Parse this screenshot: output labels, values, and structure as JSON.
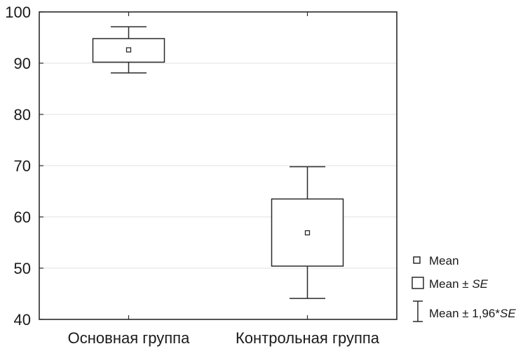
{
  "chart_data": {
    "type": "box",
    "title": "",
    "xlabel": "",
    "ylabel": "",
    "ylim": [
      40,
      100
    ],
    "yticks": [
      40,
      50,
      60,
      70,
      80,
      90,
      100
    ],
    "grid": "horizontal",
    "categories": [
      "Основная группа",
      "Контрольная группа"
    ],
    "boxes": [
      {
        "category": "Основная группа",
        "mean": 92.6,
        "se_low": 90.2,
        "se_high": 94.8,
        "ci_low": 88.1,
        "ci_high": 97.1
      },
      {
        "category": "Контрольная группа",
        "mean": 56.9,
        "se_low": 50.4,
        "se_high": 63.5,
        "ci_low": 44.1,
        "ci_high": 69.8
      }
    ],
    "legend": {
      "position": "bottom-right",
      "items": [
        {
          "label": "Mean",
          "label_italic": ""
        },
        {
          "label": "Mean ± ",
          "label_italic": "SE"
        },
        {
          "label": "Mean ± 1,96*",
          "label_italic": "SE"
        }
      ]
    },
    "colors": {
      "stroke": "#2a2a2a",
      "grid": "#e0e0e0",
      "background": "#ffffff"
    }
  }
}
